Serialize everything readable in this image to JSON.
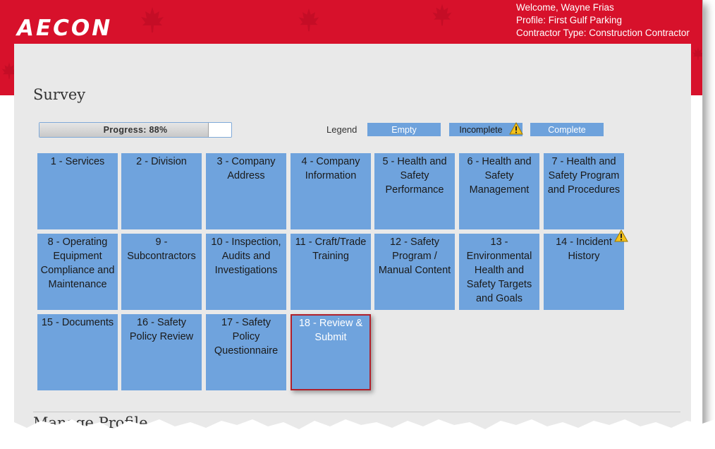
{
  "header": {
    "logo_text": "AECON",
    "welcome": "Welcome, Wayne Frias",
    "profile": "Profile: First Gulf Parking",
    "contractor_type": "Contractor Type: Construction Contractor",
    "brand_color": "#d7112b"
  },
  "survey": {
    "title": "Survey",
    "progress_label": "Progress: 88%",
    "progress_fraction": 0.88
  },
  "legend": {
    "label": "Legend",
    "empty": "Empty",
    "incomplete": "Incomplete",
    "complete": "Complete",
    "warning_icon": "warning-icon"
  },
  "sections": [
    {
      "label": "1 - Services"
    },
    {
      "label": "2 - Division"
    },
    {
      "label": "3 - Company Address"
    },
    {
      "label": "4 - Company Information"
    },
    {
      "label": "5 - Health and Safety Performance"
    },
    {
      "label": "6 - Health and Safety Management"
    },
    {
      "label": "7 - Health and Safety Program and Procedures"
    },
    {
      "label": "8 - Operating Equipment Compliance and Maintenance"
    },
    {
      "label": "9 - Subcontractors"
    },
    {
      "label": "10 - Inspection, Audits and Investigations"
    },
    {
      "label": "11 - Craft/Trade Training"
    },
    {
      "label": "12 - Safety Program / Manual Content"
    },
    {
      "label": "13 - Environmental Health and Safety Targets and Goals"
    },
    {
      "label": "14 - Incident History",
      "status": "incomplete"
    },
    {
      "label": "15 - Documents"
    },
    {
      "label": "16 - Safety Policy Review"
    },
    {
      "label": "17 - Safety Policy Questionnaire"
    },
    {
      "label": "18 - Review & Submit",
      "selected": true
    }
  ],
  "manage_profile": {
    "title": "Manage Profile"
  },
  "colors": {
    "tile": "#6fa3dd",
    "panel": "#e9e9e9",
    "selected_border": "#b0202c"
  }
}
